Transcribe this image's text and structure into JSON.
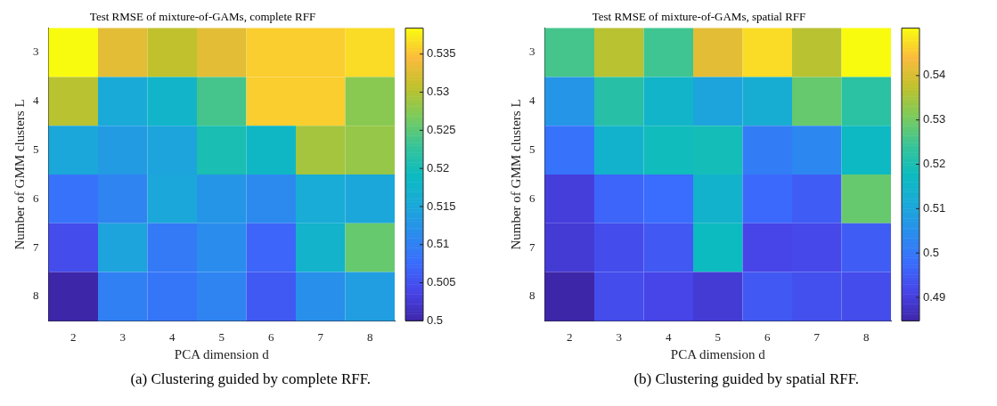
{
  "chart_data": [
    {
      "type": "heatmap",
      "title": "Test RMSE of mixture-of-GAMs, complete RFF",
      "xlabel": "PCA dimension d",
      "ylabel": "Number of GMM clusters L",
      "categories": [
        "2",
        "3",
        "4",
        "5",
        "6",
        "7",
        "8"
      ],
      "y_categories": [
        "3",
        "4",
        "5",
        "6",
        "7",
        "8"
      ],
      "cells": [
        [
          0.5384,
          0.533,
          0.5307,
          0.533,
          0.5357,
          0.5357,
          0.5365
        ],
        [
          0.5303,
          0.5154,
          0.5177,
          0.5238,
          0.5357,
          0.5357,
          0.5276
        ],
        [
          0.515,
          0.5134,
          0.5146,
          0.5204,
          0.5184,
          0.5292,
          0.5284
        ],
        [
          0.5084,
          0.5104,
          0.515,
          0.5127,
          0.5111,
          0.5157,
          0.515
        ],
        [
          0.5046,
          0.5146,
          0.5092,
          0.5115,
          0.5069,
          0.5173,
          0.5257
        ],
        [
          0.5,
          0.51,
          0.5088,
          0.5104,
          0.5058,
          0.5119,
          0.5138
        ]
      ],
      "clim": [
        0.5,
        0.5384
      ],
      "cticks": [
        0.5,
        0.505,
        0.51,
        0.515,
        0.52,
        0.525,
        0.53,
        0.535
      ],
      "annotations": [
        "(a) Clustering guided by complete RFF."
      ]
    },
    {
      "type": "heatmap",
      "title": "Test RMSE of mixture-of-GAMs, spatial RFF",
      "xlabel": "PCA dimension d",
      "ylabel": "Number of GMM clusters L",
      "categories": [
        "2",
        "3",
        "4",
        "5",
        "6",
        "7",
        "8"
      ],
      "y_categories": [
        "3",
        "4",
        "5",
        "6",
        "7",
        "8"
      ],
      "cells": [
        [
          0.5256,
          0.5368,
          0.525,
          0.5415,
          0.5474,
          0.5368,
          0.5507
        ],
        [
          0.5065,
          0.5217,
          0.5151,
          0.5098,
          0.5124,
          0.5289,
          0.5223
        ],
        [
          0.4992,
          0.5144,
          0.5184,
          0.519,
          0.5012,
          0.5032,
          0.517
        ],
        [
          0.49,
          0.4966,
          0.4979,
          0.5144,
          0.4972,
          0.4953,
          0.5289
        ],
        [
          0.4893,
          0.4926,
          0.4946,
          0.5177,
          0.4913,
          0.492,
          0.4953
        ],
        [
          0.4847,
          0.4926,
          0.4913,
          0.4893,
          0.4946,
          0.4933,
          0.4926
        ]
      ],
      "clim": [
        0.4847,
        0.5507
      ],
      "cticks": [
        0.49,
        0.5,
        0.51,
        0.52,
        0.53,
        0.54
      ],
      "annotations": [
        "(b) Clustering guided by spatial RFF."
      ]
    }
  ]
}
